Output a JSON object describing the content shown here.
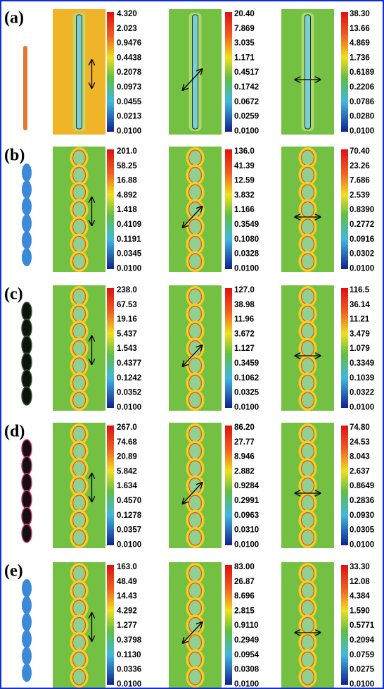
{
  "rows": [
    {
      "label": "(a)",
      "panels": [
        {
          "scale": [
            "4.320",
            "2.023",
            "0.9476",
            "0.4438",
            "0.2078",
            "0.0973",
            "0.0455",
            "0.0213",
            "0.0100"
          ]
        },
        {
          "scale": [
            "20.40",
            "7.869",
            "3.035",
            "1.171",
            "0.4517",
            "0.1742",
            "0.0672",
            "0.0259",
            "0.0100"
          ]
        },
        {
          "scale": [
            "38.30",
            "13.66",
            "4.869",
            "1.736",
            "0.6189",
            "0.2206",
            "0.0786",
            "0.0280",
            "0.0100"
          ]
        }
      ]
    },
    {
      "label": "(b)",
      "panels": [
        {
          "scale": [
            "201.0",
            "58.25",
            "16.88",
            "4.892",
            "1.418",
            "0.4109",
            "0.1191",
            "0.0345",
            "0.0100"
          ]
        },
        {
          "scale": [
            "136.0",
            "41.39",
            "12.59",
            "3.832",
            "1.166",
            "0.3549",
            "0.1080",
            "0.0328",
            "0.0100"
          ]
        },
        {
          "scale": [
            "70.40",
            "23.26",
            "7.686",
            "2.539",
            "0.8390",
            "0.2772",
            "0.0916",
            "0.0302",
            "0.0100"
          ]
        }
      ]
    },
    {
      "label": "(c)",
      "panels": [
        {
          "scale": [
            "238.0",
            "67.53",
            "19.16",
            "5.437",
            "1.543",
            "0.4377",
            "0.1242",
            "0.0352",
            "0.0100"
          ]
        },
        {
          "scale": [
            "127.0",
            "38.98",
            "11.96",
            "3.672",
            "1.127",
            "0.3459",
            "0.1062",
            "0.0325",
            "0.0100"
          ]
        },
        {
          "scale": [
            "116.5",
            "36.14",
            "11.21",
            "3.479",
            "1.079",
            "0.3349",
            "0.1039",
            "0.0322",
            "0.0100"
          ]
        }
      ]
    },
    {
      "label": "(d)",
      "panels": [
        {
          "scale": [
            "267.0",
            "74.68",
            "20.89",
            "5.842",
            "1.634",
            "0.4570",
            "0.1278",
            "0.0357",
            "0.0100"
          ]
        },
        {
          "scale": [
            "86.20",
            "27.77",
            "8.946",
            "2.882",
            "0.9284",
            "0.2991",
            "0.0963",
            "0.0310",
            "0.0100"
          ]
        },
        {
          "scale": [
            "74.80",
            "24.53",
            "8.043",
            "2.637",
            "0.8649",
            "0.2836",
            "0.0930",
            "0.0305",
            "0.0100"
          ]
        }
      ]
    },
    {
      "label": "(e)",
      "panels": [
        {
          "scale": [
            "163.0",
            "48.49",
            "14.43",
            "4.292",
            "1.277",
            "0.3798",
            "0.1130",
            "0.0336",
            "0.0100"
          ]
        },
        {
          "scale": [
            "83.00",
            "26.87",
            "8.696",
            "2.815",
            "0.9110",
            "0.2949",
            "0.0954",
            "0.0308",
            "0.0100"
          ]
        },
        {
          "scale": [
            "33.30",
            "12.08",
            "4.384",
            "1.590",
            "0.5771",
            "0.2094",
            "0.0759",
            "0.0275",
            "0.0100"
          ]
        }
      ]
    }
  ]
}
